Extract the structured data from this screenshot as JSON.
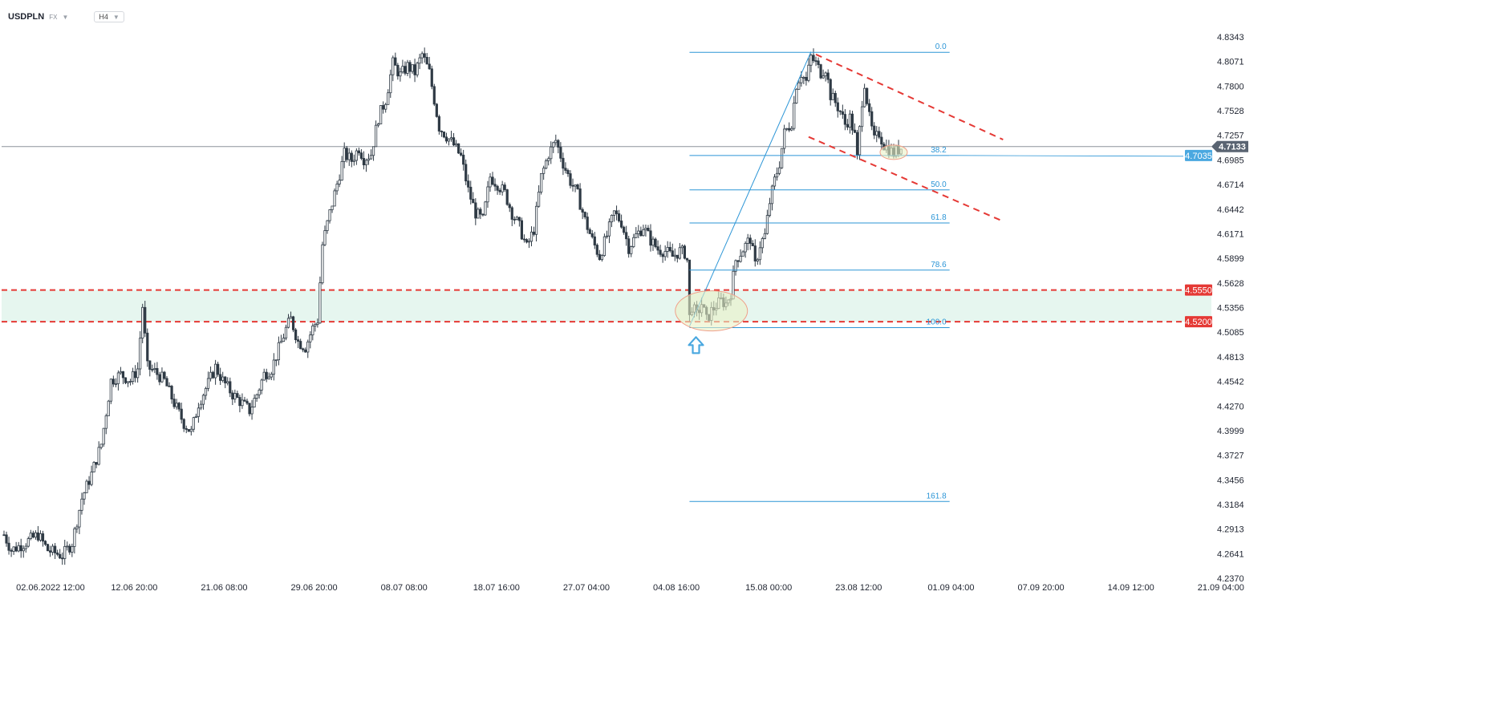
{
  "header": {
    "symbol": "USDPLN",
    "market": "FX",
    "timeframe": "H4"
  },
  "colors": {
    "candle": "#2f3a45",
    "support_fill": "#e6f6ef",
    "support_line": "#e53935",
    "fib": "#2b95d6",
    "ellipse_fill": "#e9f2c6",
    "ellipse_stroke": "#f0a08a",
    "current_tag": "#5a6472",
    "fib_tag": "#4aa8e0",
    "level_tag": "#e53935",
    "arrow": "#4aa8e0"
  },
  "chart_data": {
    "type": "candlestick",
    "y_axis": {
      "min": 4.237,
      "max": 4.8615,
      "ticks": [
        "4.8343",
        "4.8071",
        "4.7800",
        "4.7528",
        "4.7257",
        "4.6985",
        "4.6714",
        "4.6442",
        "4.6171",
        "4.5899",
        "4.5628",
        "4.5356",
        "4.5085",
        "4.4813",
        "4.4542",
        "4.4270",
        "4.3999",
        "4.3727",
        "4.3456",
        "4.3184",
        "4.2913",
        "4.2641",
        "4.2370"
      ]
    },
    "x_axis": {
      "ticks": [
        {
          "label": "02.06.2022  12:00",
          "bar": 5
        },
        {
          "label": "12.06  20:00",
          "bar": 44
        },
        {
          "label": "21.06  08:00",
          "bar": 81
        },
        {
          "label": "29.06  20:00",
          "bar": 118
        },
        {
          "label": "08.07  08:00",
          "bar": 155
        },
        {
          "label": "18.07  16:00",
          "bar": 193
        },
        {
          "label": "27.07  04:00",
          "bar": 230
        },
        {
          "label": "04.08  16:00",
          "bar": 267
        },
        {
          "label": "15.08  00:00",
          "bar": 305
        },
        {
          "label": "23.08  12:00",
          "bar": 342
        },
        {
          "label": "01.09  04:00",
          "bar": 380
        },
        {
          "label": "07.09  20:00",
          "bar": 417
        },
        {
          "label": "14.09  12:00",
          "bar": 454
        },
        {
          "label": "21.09  04:00",
          "bar": 491
        }
      ]
    },
    "price_path": [
      [
        0,
        4.285
      ],
      [
        3,
        4.268
      ],
      [
        8,
        4.275
      ],
      [
        14,
        4.285
      ],
      [
        18,
        4.268
      ],
      [
        24,
        4.262
      ],
      [
        28,
        4.276
      ],
      [
        32,
        4.325
      ],
      [
        36,
        4.352
      ],
      [
        40,
        4.385
      ],
      [
        44,
        4.455
      ],
      [
        48,
        4.462
      ],
      [
        52,
        4.455
      ],
      [
        55,
        4.468
      ],
      [
        57,
        4.537
      ],
      [
        59,
        4.47
      ],
      [
        62,
        4.465
      ],
      [
        66,
        4.455
      ],
      [
        70,
        4.43
      ],
      [
        74,
        4.408
      ],
      [
        77,
        4.398
      ],
      [
        80,
        4.43
      ],
      [
        84,
        4.452
      ],
      [
        87,
        4.47
      ],
      [
        90,
        4.455
      ],
      [
        94,
        4.44
      ],
      [
        98,
        4.43
      ],
      [
        101,
        4.422
      ],
      [
        104,
        4.44
      ],
      [
        107,
        4.462
      ],
      [
        110,
        4.468
      ],
      [
        113,
        4.49
      ],
      [
        116,
        4.512
      ],
      [
        118,
        4.523
      ],
      [
        121,
        4.498
      ],
      [
        124,
        4.492
      ],
      [
        127,
        4.513
      ],
      [
        129,
        4.522
      ],
      [
        131,
        4.605
      ],
      [
        134,
        4.64
      ],
      [
        137,
        4.672
      ],
      [
        140,
        4.705
      ],
      [
        143,
        4.698
      ],
      [
        146,
        4.712
      ],
      [
        148,
        4.7
      ],
      [
        151,
        4.705
      ],
      [
        154,
        4.745
      ],
      [
        157,
        4.765
      ],
      [
        160,
        4.805
      ],
      [
        163,
        4.792
      ],
      [
        166,
        4.802
      ],
      [
        169,
        4.795
      ],
      [
        172,
        4.815
      ],
      [
        175,
        4.795
      ],
      [
        177,
        4.765
      ],
      [
        179,
        4.735
      ],
      [
        182,
        4.725
      ],
      [
        185,
        4.715
      ],
      [
        188,
        4.702
      ],
      [
        191,
        4.665
      ],
      [
        194,
        4.64
      ],
      [
        197,
        4.632
      ],
      [
        200,
        4.68
      ],
      [
        203,
        4.672
      ],
      [
        206,
        4.662
      ],
      [
        209,
        4.64
      ],
      [
        212,
        4.625
      ],
      [
        215,
        4.602
      ],
      [
        218,
        4.622
      ],
      [
        221,
        4.68
      ],
      [
        224,
        4.705
      ],
      [
        227,
        4.72
      ],
      [
        230,
        4.695
      ],
      [
        233,
        4.675
      ],
      [
        236,
        4.66
      ],
      [
        239,
        4.632
      ],
      [
        242,
        4.61
      ],
      [
        245,
        4.592
      ],
      [
        248,
        4.615
      ],
      [
        251,
        4.64
      ],
      [
        254,
        4.63
      ],
      [
        257,
        4.602
      ],
      [
        260,
        4.615
      ],
      [
        263,
        4.625
      ],
      [
        266,
        4.61
      ],
      [
        269,
        4.6
      ],
      [
        272,
        4.598
      ],
      [
        275,
        4.592
      ],
      [
        278,
        4.598
      ],
      [
        280,
        4.596
      ],
      [
        281,
        4.588
      ],
      [
        282,
        4.525
      ],
      [
        283,
        4.537
      ],
      [
        285,
        4.527
      ],
      [
        287,
        4.54
      ],
      [
        289,
        4.522
      ],
      [
        291,
        4.532
      ],
      [
        293,
        4.538
      ],
      [
        295,
        4.543
      ],
      [
        297,
        4.54
      ],
      [
        299,
        4.552
      ],
      [
        301,
        4.588
      ],
      [
        304,
        4.6
      ],
      [
        307,
        4.612
      ],
      [
        309,
        4.582
      ],
      [
        311,
        4.605
      ],
      [
        313,
        4.615
      ],
      [
        315,
        4.652
      ],
      [
        317,
        4.676
      ],
      [
        319,
        4.695
      ],
      [
        321,
        4.728
      ],
      [
        324,
        4.74
      ],
      [
        326,
        4.782
      ],
      [
        328,
        4.794
      ],
      [
        330,
        4.785
      ],
      [
        332,
        4.812
      ],
      [
        334,
        4.805
      ],
      [
        336,
        4.795
      ],
      [
        338,
        4.8
      ],
      [
        340,
        4.77
      ],
      [
        342,
        4.762
      ],
      [
        344,
        4.752
      ],
      [
        346,
        4.738
      ],
      [
        348,
        4.745
      ],
      [
        350,
        4.725
      ],
      [
        351,
        4.7
      ],
      [
        353,
        4.764
      ],
      [
        354,
        4.784
      ],
      [
        356,
        4.745
      ],
      [
        358,
        4.72
      ],
      [
        360,
        4.728
      ],
      [
        362,
        4.715
      ],
      [
        364,
        4.71
      ],
      [
        366,
        4.706
      ],
      [
        368,
        4.71
      ],
      [
        369,
        4.712
      ]
    ],
    "support_zone": {
      "upper": 4.555,
      "lower": 4.52,
      "upper_label": "4.5550",
      "lower_label": "4.5200"
    },
    "current_price": {
      "value": 4.7133,
      "label": "4.7133"
    },
    "fib_price": {
      "value": 4.7035,
      "label": "4.7035"
    },
    "fibonacci": {
      "bar_start": 282,
      "bar_end": 389,
      "levels": [
        {
          "label": "0.0",
          "price": 4.8173
        },
        {
          "label": "38.2",
          "price": 4.7035
        },
        {
          "label": "50.0",
          "price": 4.6655
        },
        {
          "label": "61.8",
          "price": 4.629
        },
        {
          "label": "78.6",
          "price": 4.577
        },
        {
          "label": "100.0",
          "price": 4.5135
        },
        {
          "label": "161.8",
          "price": 4.3217
        }
      ]
    },
    "impulse_line": {
      "from": [
        282,
        4.515
      ],
      "to": [
        332,
        4.818
      ]
    },
    "channel": {
      "upper": {
        "from": [
          334,
          4.815
        ],
        "to": [
          411,
          4.721
        ]
      },
      "lower": {
        "from": [
          331,
          4.724
        ],
        "to": [
          410,
          4.632
        ]
      }
    },
    "highlights": [
      {
        "center": [
          291,
          4.532
        ],
        "rx": 45,
        "ry": 25
      },
      {
        "center": [
          366,
          4.707
        ],
        "rx": 17,
        "ry": 9
      }
    ],
    "reversal_arrow": {
      "bar": 284,
      "price": 4.496
    }
  }
}
